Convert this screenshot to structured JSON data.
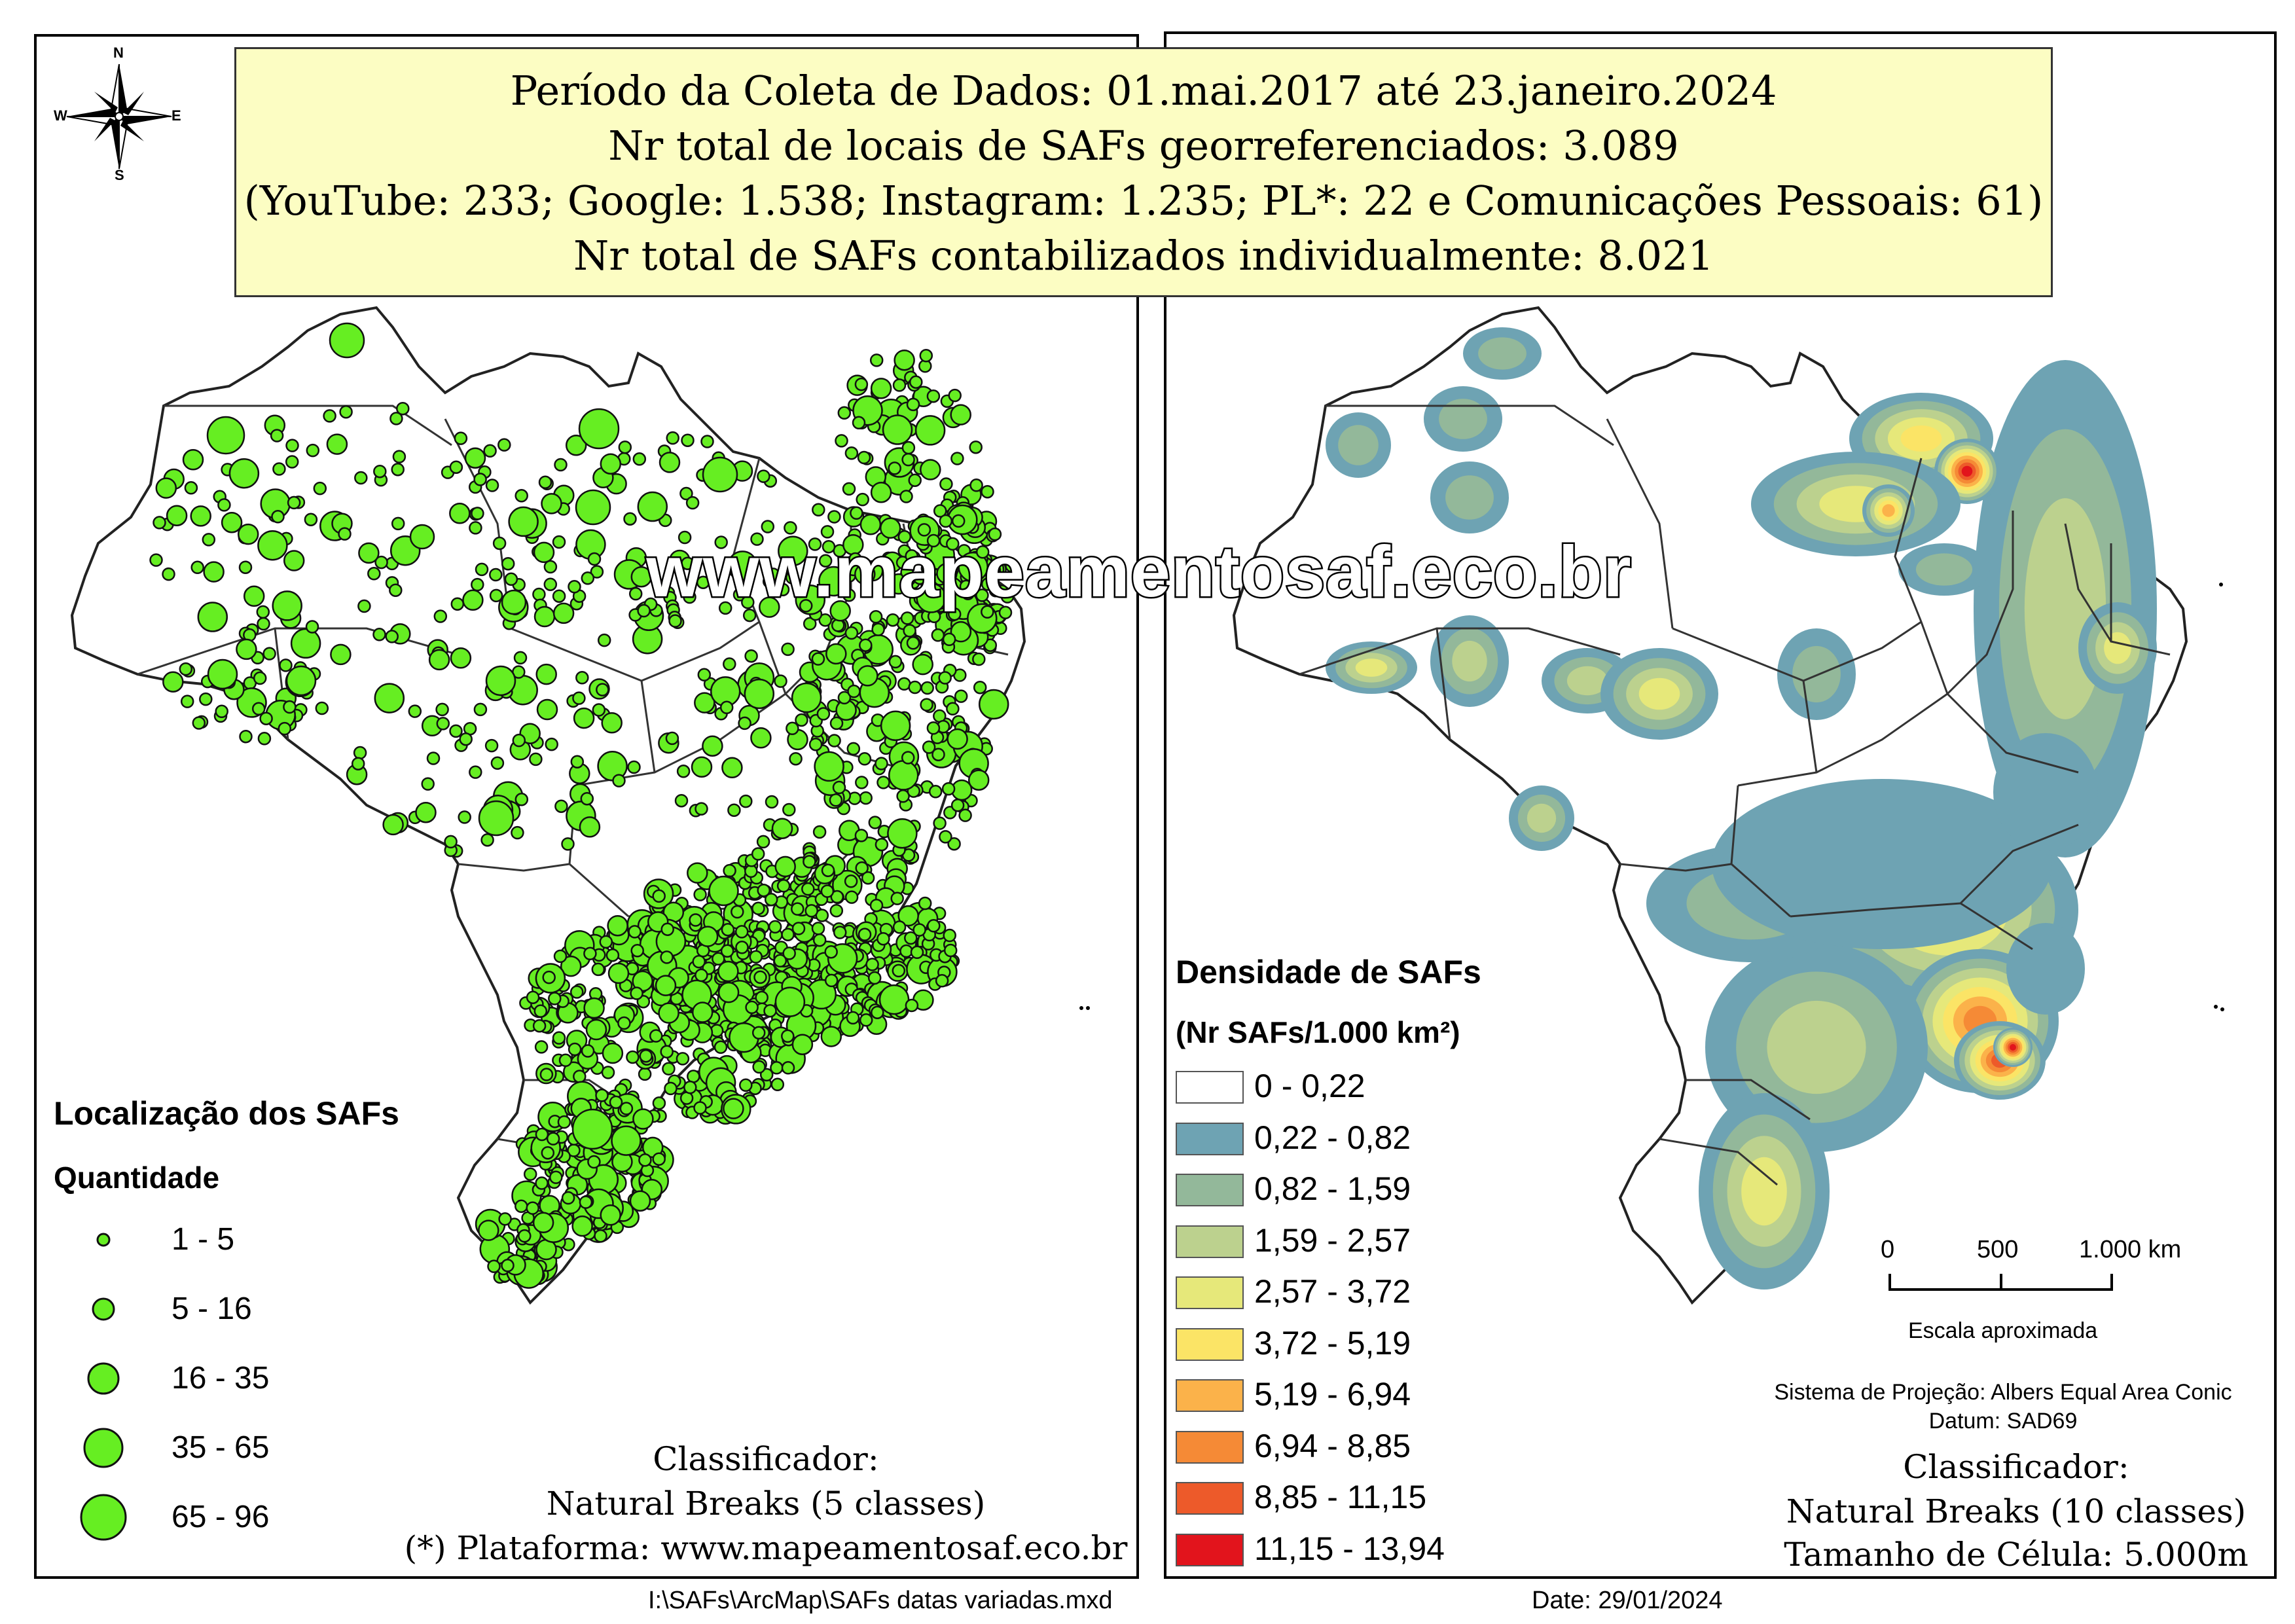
{
  "header": {
    "line1": "Período da Coleta de Dados: 01.mai.2017 até 23.janeiro.2024",
    "line2": "Nr total de locais de SAFs georreferenciados: 3.089",
    "line3": "(YouTube: 233; Google: 1.538; Instagram: 1.235; PL*: 22 e Comunicações Pessoais: 61)",
    "line4": "Nr total de SAFs contabilizados individualmente: 8.021"
  },
  "watermark": "www.mapeamentosaf.eco.br",
  "compass": {
    "n": "N",
    "s": "S",
    "e": "E",
    "w": "W"
  },
  "left_legend": {
    "title": "Localização dos SAFs",
    "subtitle": "Quantidade",
    "classes": [
      "1 - 5",
      "5 - 16",
      "16 - 35",
      "35 - 65",
      "65 - 96"
    ],
    "point_color": "#66ee22"
  },
  "left_notes": {
    "classifier_label": "Classificador:",
    "classifier_value": "Natural Breaks (5 classes)",
    "platform": "(*)  Plataforma: www.mapeamentosaf.eco.br"
  },
  "right_legend": {
    "title": "Densidade de SAFs",
    "subtitle": "(Nr SAFs/1.000 km²)",
    "classes": [
      {
        "label": "0 - 0,22",
        "color": "#ffffff"
      },
      {
        "label": "0,22 - 0,82",
        "color": "#6ea3b3"
      },
      {
        "label": "0,82 - 1,59",
        "color": "#93b89a"
      },
      {
        "label": "1,59 - 2,57",
        "color": "#bcd18e"
      },
      {
        "label": "2,57 - 3,72",
        "color": "#e6e87a"
      },
      {
        "label": "3,72 - 5,19",
        "color": "#fbe466"
      },
      {
        "label": "5,19 - 6,94",
        "color": "#fbb24a"
      },
      {
        "label": "6,94 - 8,85",
        "color": "#f58a36"
      },
      {
        "label": "8,85 - 11,15",
        "color": "#ed5a2a"
      },
      {
        "label": "11,15 - 13,94",
        "color": "#e2141c"
      }
    ]
  },
  "scale_bar": {
    "ticks": [
      "0",
      "500",
      "1.000 km"
    ],
    "caption": "Escala aproximada"
  },
  "right_notes": {
    "projection": "Sistema de Projeção: Albers Equal Area Conic",
    "datum": "Datum: SAD69",
    "classifier_label": "Classificador:",
    "classifier_value": "Natural Breaks (10 classes)",
    "cell_size": "Tamanho de Célula: 5.000m"
  },
  "footer": {
    "file_path": "I:\\SAFs\\ArcMap\\SAFs datas variadas.mxd",
    "date": "Date: 29/01/2024"
  }
}
